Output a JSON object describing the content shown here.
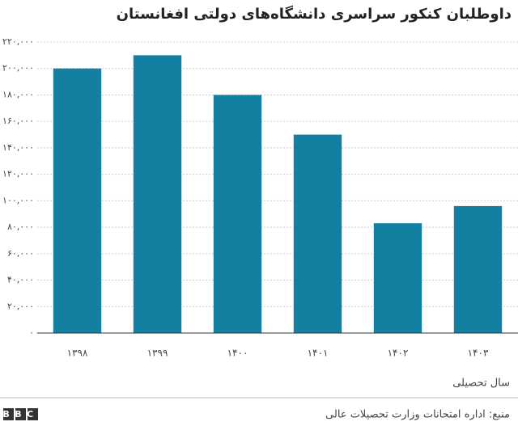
{
  "chart_data": {
    "type": "bar",
    "title": "داوطلبان کنکور سراسری دانشگاه‌های دولتی افغانستان",
    "x_label": "سال تحصیلی",
    "source": "منبع: اداره امتحانات وزارت تحصیلات عالی",
    "logo": "BBC",
    "categories": [
      "۱۳۹۸",
      "۱۳۹۹",
      "۱۴۰۰",
      "۱۴۰۱",
      "۱۴۰۲",
      "۱۴۰۳"
    ],
    "values": [
      200000,
      210000,
      180000,
      150000,
      83000,
      96000
    ],
    "color": "#1380a1",
    "ylim": [
      0,
      220000
    ],
    "yticks": [
      {
        "value": 0,
        "label": "۰"
      },
      {
        "value": 20000,
        "label": "۲۰,۰۰۰"
      },
      {
        "value": 40000,
        "label": "۴۰,۰۰۰"
      },
      {
        "value": 60000,
        "label": "۶۰,۰۰۰"
      },
      {
        "value": 80000,
        "label": "۸۰,۰۰۰"
      },
      {
        "value": 100000,
        "label": "۱۰۰,۰۰۰"
      },
      {
        "value": 120000,
        "label": "۱۲۰,۰۰۰"
      },
      {
        "value": 140000,
        "label": "۱۴۰,۰۰۰"
      },
      {
        "value": 160000,
        "label": "۱۶۰,۰۰۰"
      },
      {
        "value": 180000,
        "label": "۱۸۰,۰۰۰"
      },
      {
        "value": 200000,
        "label": "۲۰۰,۰۰۰"
      },
      {
        "value": 220000,
        "label": "۲۲۰,۰۰۰"
      }
    ],
    "grid": true
  }
}
